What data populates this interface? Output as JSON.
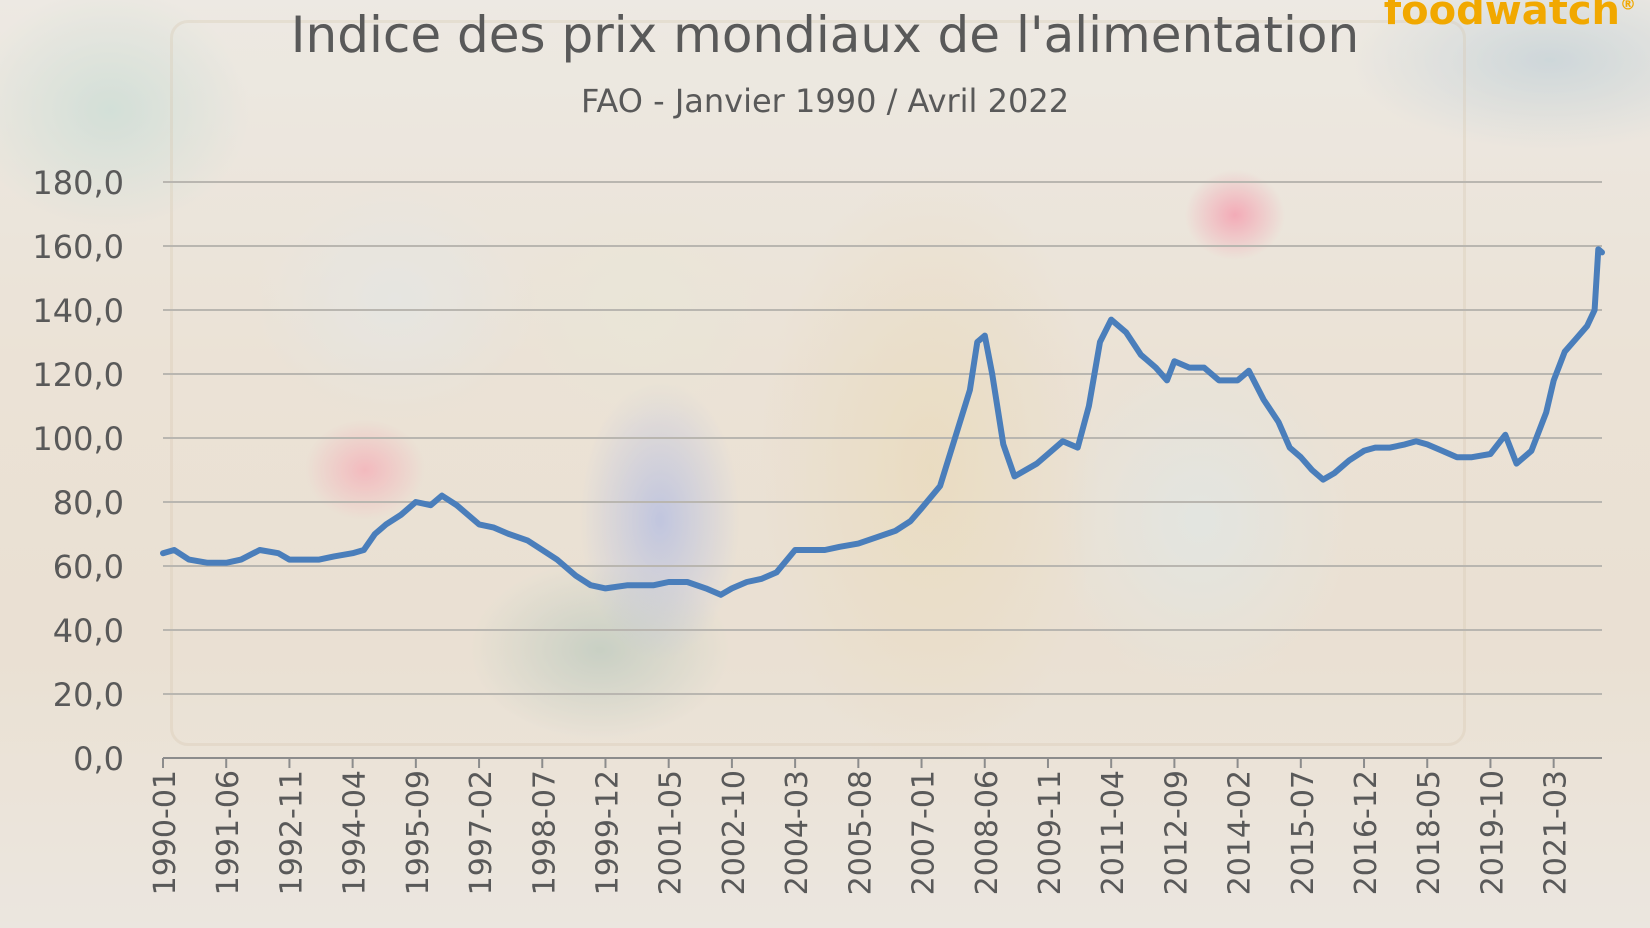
{
  "logo_text": "foodwatch",
  "logo_mark": "®",
  "chart_data": {
    "type": "line",
    "title": "Indice des prix mondiaux de l'alimentation",
    "subtitle": "FAO - Janvier 1990 / Avril 2022",
    "xlabel": "",
    "ylabel": "",
    "ylim": [
      0,
      180
    ],
    "yticks": [
      "0,0",
      "20,0",
      "40,0",
      "60,0",
      "80,0",
      "100,0",
      "120,0",
      "140,0",
      "160,0",
      "180,0"
    ],
    "xticks": [
      "1990-01",
      "1991-06",
      "1992-11",
      "1994-04",
      "1995-09",
      "1997-02",
      "1998-07",
      "1999-12",
      "2001-05",
      "2002-10",
      "2004-03",
      "2005-08",
      "2007-01",
      "2008-06",
      "2009-11",
      "2011-04",
      "2012-09",
      "2014-02",
      "2015-07",
      "2016-12",
      "2018-05",
      "2019-10",
      "2021-03"
    ],
    "grid": true,
    "line_color": "#4a7ebb",
    "series": [
      {
        "points": [
          [
            "1990-01",
            64
          ],
          [
            "1990-04",
            65
          ],
          [
            "1990-08",
            62
          ],
          [
            "1991-01",
            61
          ],
          [
            "1991-06",
            61
          ],
          [
            "1991-10",
            62
          ],
          [
            "1992-03",
            65
          ],
          [
            "1992-08",
            64
          ],
          [
            "1992-11",
            62
          ],
          [
            "1993-03",
            62
          ],
          [
            "1993-07",
            62
          ],
          [
            "1993-11",
            63
          ],
          [
            "1994-04",
            64
          ],
          [
            "1994-07",
            65
          ],
          [
            "1994-10",
            70
          ],
          [
            "1995-01",
            73
          ],
          [
            "1995-05",
            76
          ],
          [
            "1995-09",
            80
          ],
          [
            "1996-01",
            79
          ],
          [
            "1996-04",
            82
          ],
          [
            "1996-08",
            79
          ],
          [
            "1997-02",
            73
          ],
          [
            "1997-06",
            72
          ],
          [
            "1997-10",
            70
          ],
          [
            "1998-03",
            68
          ],
          [
            "1998-07",
            65
          ],
          [
            "1998-11",
            62
          ],
          [
            "1999-04",
            57
          ],
          [
            "1999-08",
            54
          ],
          [
            "1999-12",
            53
          ],
          [
            "2000-06",
            54
          ],
          [
            "2001-01",
            54
          ],
          [
            "2001-05",
            55
          ],
          [
            "2001-10",
            55
          ],
          [
            "2002-03",
            53
          ],
          [
            "2002-07",
            51
          ],
          [
            "2002-10",
            53
          ],
          [
            "2003-02",
            55
          ],
          [
            "2003-06",
            56
          ],
          [
            "2003-10",
            58
          ],
          [
            "2004-03",
            65
          ],
          [
            "2004-07",
            65
          ],
          [
            "2004-11",
            65
          ],
          [
            "2005-03",
            66
          ],
          [
            "2005-08",
            67
          ],
          [
            "2006-01",
            69
          ],
          [
            "2006-06",
            71
          ],
          [
            "2006-10",
            74
          ],
          [
            "2007-01",
            78
          ],
          [
            "2007-06",
            85
          ],
          [
            "2007-10",
            100
          ],
          [
            "2008-02",
            115
          ],
          [
            "2008-04",
            130
          ],
          [
            "2008-06",
            132
          ],
          [
            "2008-08",
            120
          ],
          [
            "2008-11",
            98
          ],
          [
            "2009-02",
            88
          ],
          [
            "2009-05",
            90
          ],
          [
            "2009-08",
            92
          ],
          [
            "2009-11",
            95
          ],
          [
            "2010-03",
            99
          ],
          [
            "2010-07",
            97
          ],
          [
            "2010-10",
            110
          ],
          [
            "2011-01",
            130
          ],
          [
            "2011-04",
            137
          ],
          [
            "2011-08",
            133
          ],
          [
            "2011-12",
            126
          ],
          [
            "2012-04",
            122
          ],
          [
            "2012-07",
            118
          ],
          [
            "2012-09",
            124
          ],
          [
            "2013-01",
            122
          ],
          [
            "2013-05",
            122
          ],
          [
            "2013-09",
            118
          ],
          [
            "2014-02",
            118
          ],
          [
            "2014-05",
            121
          ],
          [
            "2014-09",
            112
          ],
          [
            "2015-01",
            105
          ],
          [
            "2015-04",
            97
          ],
          [
            "2015-07",
            94
          ],
          [
            "2015-10",
            90
          ],
          [
            "2016-01",
            87
          ],
          [
            "2016-04",
            89
          ],
          [
            "2016-08",
            93
          ],
          [
            "2016-12",
            96
          ],
          [
            "2017-03",
            97
          ],
          [
            "2017-07",
            97
          ],
          [
            "2017-11",
            98
          ],
          [
            "2018-02",
            99
          ],
          [
            "2018-05",
            98
          ],
          [
            "2018-09",
            96
          ],
          [
            "2019-01",
            94
          ],
          [
            "2019-05",
            94
          ],
          [
            "2019-10",
            95
          ],
          [
            "2020-02",
            101
          ],
          [
            "2020-05",
            92
          ],
          [
            "2020-09",
            96
          ],
          [
            "2021-01",
            108
          ],
          [
            "2021-03",
            118
          ],
          [
            "2021-06",
            127
          ],
          [
            "2021-09",
            131
          ],
          [
            "2021-12",
            135
          ],
          [
            "2022-02",
            140
          ],
          [
            "2022-03",
            159
          ],
          [
            "2022-04",
            158
          ]
        ]
      }
    ]
  }
}
